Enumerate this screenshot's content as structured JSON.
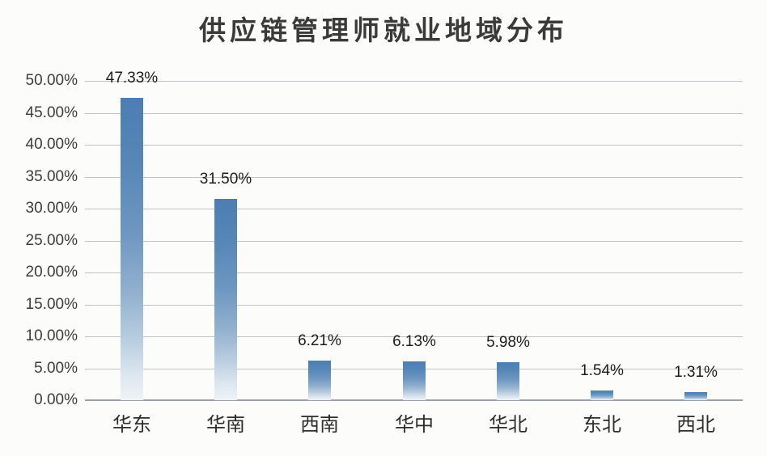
{
  "chart_data": {
    "type": "bar",
    "title": "供应链管理师就业地域分布",
    "categories": [
      "华东",
      "华南",
      "西南",
      "华中",
      "华北",
      "东北",
      "西北"
    ],
    "values": [
      47.33,
      31.5,
      6.21,
      6.13,
      5.98,
      1.54,
      1.31
    ],
    "value_labels": [
      "47.33%",
      "31.50%",
      "6.21%",
      "6.13%",
      "5.98%",
      "1.54%",
      "1.31%"
    ],
    "y_ticks": [
      "0.00%",
      "5.00%",
      "10.00%",
      "15.00%",
      "20.00%",
      "25.00%",
      "30.00%",
      "35.00%",
      "40.00%",
      "45.00%",
      "50.00%"
    ],
    "ylim": [
      0,
      50
    ],
    "y_step": 5,
    "xlabel": "",
    "ylabel": "",
    "grid": "horizontal",
    "legend": "none",
    "colors": {
      "bar_top": "#4c7eb2",
      "bar_bottom_fade": "#eef3f6",
      "gridline": "#abafb5",
      "axis_line": "#9aa0a6",
      "title_text": "#3a3a3a",
      "tick_text": "#3c3c3c",
      "label_text": "#1d1d1d",
      "background": "#fcfcfa"
    }
  }
}
